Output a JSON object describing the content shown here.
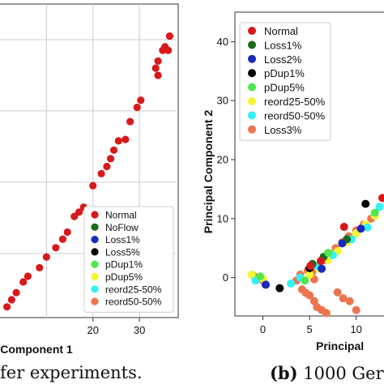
{
  "captions": {
    "left": "fer experiments.",
    "right_label": "(b)",
    "right_text": "1000 Ger"
  },
  "chart_data": [
    {
      "type": "scatter",
      "xlabel": "Component 1",
      "ylabel": "",
      "xticks": [
        20,
        30
      ],
      "yticks": [],
      "xlim": [
        0,
        38
      ],
      "ylim": [
        -9,
        35
      ],
      "grid": true,
      "legend_position": "lower-right",
      "legend": [
        {
          "name": "Normal",
          "color": "#d7191c"
        },
        {
          "name": "NoFlow",
          "color": "#1a6b1a"
        },
        {
          "name": "Loss1%",
          "color": "#1a29c0"
        },
        {
          "name": "Loss5%",
          "color": "#000000"
        },
        {
          "name": "pDup1%",
          "color": "#4de84d"
        },
        {
          "name": "pDup5%",
          "color": "#f5f531"
        },
        {
          "name": "reord25-50%",
          "color": "#33f2f2"
        },
        {
          "name": "reord50-50%",
          "color": "#ec7550"
        }
      ],
      "series": [
        {
          "name": "Normal",
          "color": "#d7191c",
          "points": [
            [
              36.5,
              30.5
            ],
            [
              35.5,
              29
            ],
            [
              36.2,
              28.5
            ],
            [
              35,
              28.5
            ],
            [
              34,
              27
            ],
            [
              33.5,
              26
            ],
            [
              34,
              25
            ],
            [
              30.3,
              21.5
            ],
            [
              29.5,
              20.5
            ],
            [
              28,
              18.5
            ],
            [
              27,
              16
            ],
            [
              25.5,
              15.8
            ],
            [
              24.5,
              14.5
            ],
            [
              23.8,
              13.3
            ],
            [
              23,
              12.2
            ],
            [
              21.8,
              11.2
            ],
            [
              20,
              9.5
            ],
            [
              18,
              6.5
            ],
            [
              17,
              5.8
            ],
            [
              16,
              5.2
            ],
            [
              14.5,
              3
            ],
            [
              13.5,
              2
            ],
            [
              12,
              0.8
            ],
            [
              10,
              -0.5
            ],
            [
              8.5,
              -2
            ],
            [
              6,
              -3.2
            ],
            [
              5,
              -4
            ],
            [
              3.5,
              -5.5
            ],
            [
              2.5,
              -6.5
            ],
            [
              1.5,
              -7.5
            ]
          ]
        }
      ]
    },
    {
      "type": "scatter",
      "xlabel": "Principal",
      "ylabel": "Principal Component 2",
      "xticks": [
        0,
        5,
        10
      ],
      "yticks": [
        0,
        10,
        20,
        30,
        40
      ],
      "xlim": [
        -3,
        13.5
      ],
      "ylim": [
        -6.5,
        45
      ],
      "grid": false,
      "legend_position": "upper-left",
      "legend": [
        {
          "name": "Normal",
          "color": "#d7191c"
        },
        {
          "name": "Loss1%",
          "color": "#1a6b1a"
        },
        {
          "name": "Loss2%",
          "color": "#1a29c0"
        },
        {
          "name": "pDup1%",
          "color": "#000000"
        },
        {
          "name": "pDup5%",
          "color": "#4de84d"
        },
        {
          "name": "reord25-50%",
          "color": "#f5f531"
        },
        {
          "name": "reord50-50%",
          "color": "#33f2f2"
        },
        {
          "name": "Loss3%",
          "color": "#ec7550"
        }
      ],
      "series": [
        {
          "name": "Loss3%",
          "color": "#ec7550",
          "points": [
            [
              -1,
              0.3
            ],
            [
              -0.5,
              -0.2
            ],
            [
              0,
              -0.5
            ],
            [
              0.3,
              -1.2
            ],
            [
              4.2,
              -2
            ],
            [
              4.6,
              -2.6
            ],
            [
              5,
              -3
            ],
            [
              5.5,
              -4
            ],
            [
              5.8,
              -5
            ],
            [
              6.3,
              -5.5
            ],
            [
              6.8,
              -6
            ],
            [
              5.3,
              1
            ],
            [
              6,
              2
            ],
            [
              6.6,
              3
            ],
            [
              7.2,
              4
            ],
            [
              7.8,
              5
            ],
            [
              8.5,
              6
            ],
            [
              9.2,
              7
            ],
            [
              10,
              8
            ],
            [
              10.8,
              9
            ],
            [
              11.6,
              10
            ],
            [
              8,
              -2.5
            ],
            [
              8.6,
              -3.5
            ],
            [
              9.3,
              -4
            ],
            [
              10,
              -5.5
            ],
            [
              4,
              0.5
            ],
            [
              4.8,
              1.2
            ],
            [
              3.6,
              -0.5
            ],
            [
              5.5,
              -0.3
            ]
          ]
        },
        {
          "name": "reord25-50%",
          "color": "#f5f531",
          "points": [
            [
              -1.2,
              0.5
            ],
            [
              0,
              -0.2
            ],
            [
              5,
              0.5
            ],
            [
              6,
              1.5
            ],
            [
              7,
              3
            ],
            [
              8,
              4.5
            ],
            [
              9,
              6
            ],
            [
              10,
              7.5
            ],
            [
              11,
              9
            ],
            [
              12,
              10.5
            ]
          ]
        },
        {
          "name": "reord50-50%",
          "color": "#33f2f2",
          "points": [
            [
              -0.8,
              -0.5
            ],
            [
              3,
              -1
            ],
            [
              4,
              0
            ],
            [
              5.8,
              2
            ],
            [
              7.5,
              3.8
            ],
            [
              9.5,
              6.5
            ],
            [
              11.2,
              8.5
            ],
            [
              12.5,
              12
            ]
          ]
        },
        {
          "name": "Loss1%",
          "color": "#1a6b1a",
          "points": [
            [
              5.3,
              2.3
            ],
            [
              6.5,
              3.5
            ],
            [
              9,
              6.5
            ]
          ]
        },
        {
          "name": "Loss2%",
          "color": "#1a29c0",
          "points": [
            [
              0.3,
              -1.2
            ],
            [
              6.3,
              1.5
            ],
            [
              8.5,
              5.8
            ],
            [
              10.5,
              8.3
            ]
          ]
        },
        {
          "name": "pDup1%",
          "color": "#000000",
          "points": [
            [
              1.8,
              -1.8
            ],
            [
              5,
              1.6
            ],
            [
              11,
              12.5
            ]
          ]
        },
        {
          "name": "pDup5%",
          "color": "#4de84d",
          "points": [
            [
              -0.3,
              0.2
            ],
            [
              4.5,
              -0.5
            ],
            [
              7,
              4.2
            ],
            [
              12,
              11
            ]
          ]
        },
        {
          "name": "Normal",
          "color": "#d7191c",
          "points": [
            [
              5.1,
              2
            ],
            [
              6.2,
              2.8
            ],
            [
              8.7,
              8.6
            ],
            [
              12.8,
              13.5
            ]
          ]
        }
      ]
    }
  ]
}
